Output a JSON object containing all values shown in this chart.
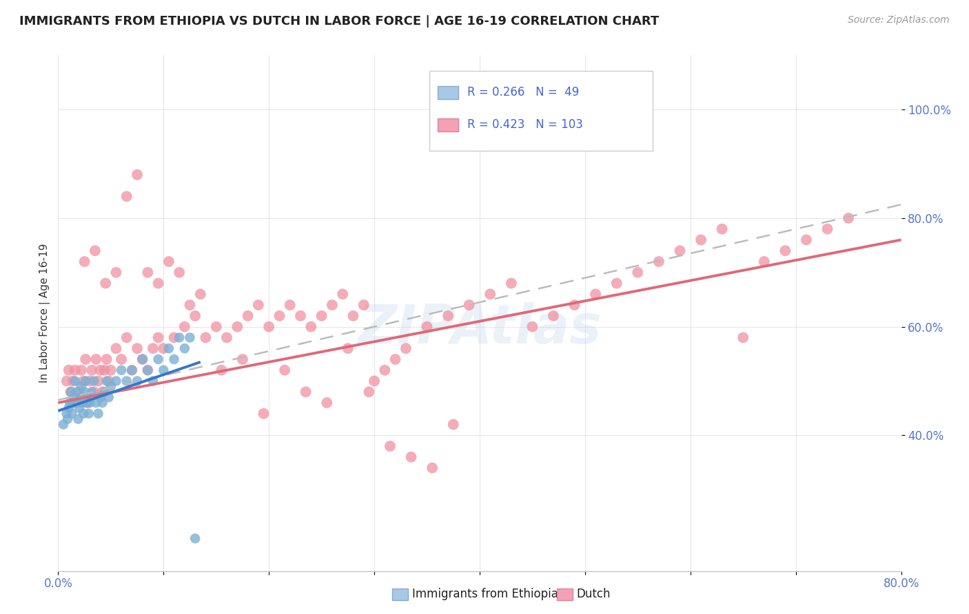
{
  "title": "IMMIGRANTS FROM ETHIOPIA VS DUTCH IN LABOR FORCE | AGE 16-19 CORRELATION CHART",
  "source": "Source: ZipAtlas.com",
  "ylabel": "In Labor Force | Age 16-19",
  "xlim": [
    0.0,
    0.8
  ],
  "ylim": [
    0.15,
    1.1
  ],
  "yticks_right": [
    0.4,
    0.6,
    0.8,
    1.0
  ],
  "ytick_labels_right": [
    "40.0%",
    "60.0%",
    "80.0%",
    "100.0%"
  ],
  "xtick_positions": [
    0.0,
    0.1,
    0.2,
    0.3,
    0.4,
    0.5,
    0.6,
    0.7,
    0.8
  ],
  "xtick_labels": [
    "0.0%",
    "",
    "",
    "",
    "",
    "",
    "",
    "",
    "80.0%"
  ],
  "eth_color": "#7bafd4",
  "dutch_color": "#f090a0",
  "eth_line_color": "#3377cc",
  "dutch_line_color": "#e06878",
  "dashed_line_color": "#bbbbbb",
  "watermark": "ZIPAtlas",
  "eth_scatter_x": [
    0.005,
    0.008,
    0.009,
    0.01,
    0.011,
    0.012,
    0.013,
    0.014,
    0.015,
    0.016,
    0.018,
    0.019,
    0.02,
    0.021,
    0.022,
    0.023,
    0.024,
    0.025,
    0.026,
    0.027,
    0.028,
    0.029,
    0.03,
    0.032,
    0.034,
    0.036,
    0.038,
    0.04,
    0.042,
    0.044,
    0.046,
    0.048,
    0.05,
    0.055,
    0.06,
    0.065,
    0.07,
    0.075,
    0.08,
    0.085,
    0.09,
    0.095,
    0.1,
    0.105,
    0.11,
    0.115,
    0.12,
    0.125,
    0.13
  ],
  "eth_scatter_y": [
    0.42,
    0.44,
    0.43,
    0.45,
    0.46,
    0.48,
    0.44,
    0.46,
    0.47,
    0.5,
    0.48,
    0.43,
    0.45,
    0.47,
    0.49,
    0.46,
    0.44,
    0.48,
    0.5,
    0.46,
    0.47,
    0.44,
    0.46,
    0.48,
    0.5,
    0.46,
    0.44,
    0.47,
    0.46,
    0.48,
    0.5,
    0.47,
    0.49,
    0.5,
    0.52,
    0.5,
    0.52,
    0.5,
    0.54,
    0.52,
    0.5,
    0.54,
    0.52,
    0.56,
    0.54,
    0.58,
    0.56,
    0.58,
    0.21
  ],
  "dutch_scatter_x": [
    0.008,
    0.01,
    0.012,
    0.014,
    0.016,
    0.018,
    0.02,
    0.022,
    0.024,
    0.026,
    0.028,
    0.03,
    0.032,
    0.034,
    0.036,
    0.038,
    0.04,
    0.042,
    0.044,
    0.046,
    0.048,
    0.05,
    0.055,
    0.06,
    0.065,
    0.07,
    0.075,
    0.08,
    0.085,
    0.09,
    0.095,
    0.1,
    0.11,
    0.12,
    0.13,
    0.14,
    0.15,
    0.16,
    0.17,
    0.18,
    0.19,
    0.2,
    0.21,
    0.22,
    0.23,
    0.24,
    0.25,
    0.26,
    0.27,
    0.28,
    0.29,
    0.3,
    0.31,
    0.32,
    0.33,
    0.35,
    0.37,
    0.39,
    0.41,
    0.43,
    0.45,
    0.47,
    0.49,
    0.51,
    0.53,
    0.55,
    0.57,
    0.59,
    0.61,
    0.63,
    0.65,
    0.67,
    0.69,
    0.71,
    0.73,
    0.75,
    0.025,
    0.035,
    0.045,
    0.055,
    0.065,
    0.075,
    0.085,
    0.095,
    0.105,
    0.115,
    0.125,
    0.135,
    0.155,
    0.175,
    0.195,
    0.215,
    0.235,
    0.255,
    0.275,
    0.295,
    0.315,
    0.335,
    0.355,
    0.375
  ],
  "dutch_scatter_y": [
    0.5,
    0.52,
    0.48,
    0.5,
    0.52,
    0.46,
    0.48,
    0.52,
    0.5,
    0.54,
    0.46,
    0.5,
    0.52,
    0.48,
    0.54,
    0.5,
    0.52,
    0.48,
    0.52,
    0.54,
    0.5,
    0.52,
    0.56,
    0.54,
    0.58,
    0.52,
    0.56,
    0.54,
    0.52,
    0.56,
    0.58,
    0.56,
    0.58,
    0.6,
    0.62,
    0.58,
    0.6,
    0.58,
    0.6,
    0.62,
    0.64,
    0.6,
    0.62,
    0.64,
    0.62,
    0.6,
    0.62,
    0.64,
    0.66,
    0.62,
    0.64,
    0.5,
    0.52,
    0.54,
    0.56,
    0.6,
    0.62,
    0.64,
    0.66,
    0.68,
    0.6,
    0.62,
    0.64,
    0.66,
    0.68,
    0.7,
    0.72,
    0.74,
    0.76,
    0.78,
    0.58,
    0.72,
    0.74,
    0.76,
    0.78,
    0.8,
    0.72,
    0.74,
    0.68,
    0.7,
    0.84,
    0.88,
    0.7,
    0.68,
    0.72,
    0.7,
    0.64,
    0.66,
    0.52,
    0.54,
    0.44,
    0.52,
    0.48,
    0.46,
    0.56,
    0.48,
    0.38,
    0.36,
    0.34,
    0.42
  ],
  "eth_line_x": [
    0.0,
    0.135
  ],
  "eth_line_y": [
    0.445,
    0.535
  ],
  "dutch_line_x": [
    0.0,
    0.8
  ],
  "dutch_line_y": [
    0.46,
    0.76
  ],
  "dashed_line_x": [
    0.0,
    0.8
  ],
  "dashed_line_y": [
    0.465,
    0.825
  ]
}
